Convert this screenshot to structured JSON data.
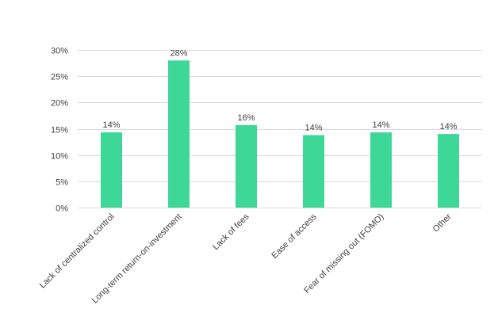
{
  "chart_data": {
    "type": "bar",
    "title": "",
    "xlabel": "",
    "ylabel": "",
    "categories": [
      "Lack of centralized control",
      "Long-term return-on-investment",
      "Lack of fees",
      "Ease of access",
      "Fear of missing out (FOMO)",
      "Other"
    ],
    "values": [
      14.3,
      28,
      15.7,
      13.8,
      14.3,
      14
    ],
    "data_labels": [
      "14%",
      "28%",
      "16%",
      "14%",
      "14%",
      "14%"
    ],
    "ylim": [
      0,
      30
    ],
    "yticks": [
      0,
      5,
      10,
      15,
      20,
      25,
      30
    ],
    "ytick_labels": [
      "0%",
      "5%",
      "10%",
      "15%",
      "20%",
      "25%",
      "30%"
    ],
    "bar_color": "#3dd897",
    "grid": true,
    "legend": "none"
  }
}
